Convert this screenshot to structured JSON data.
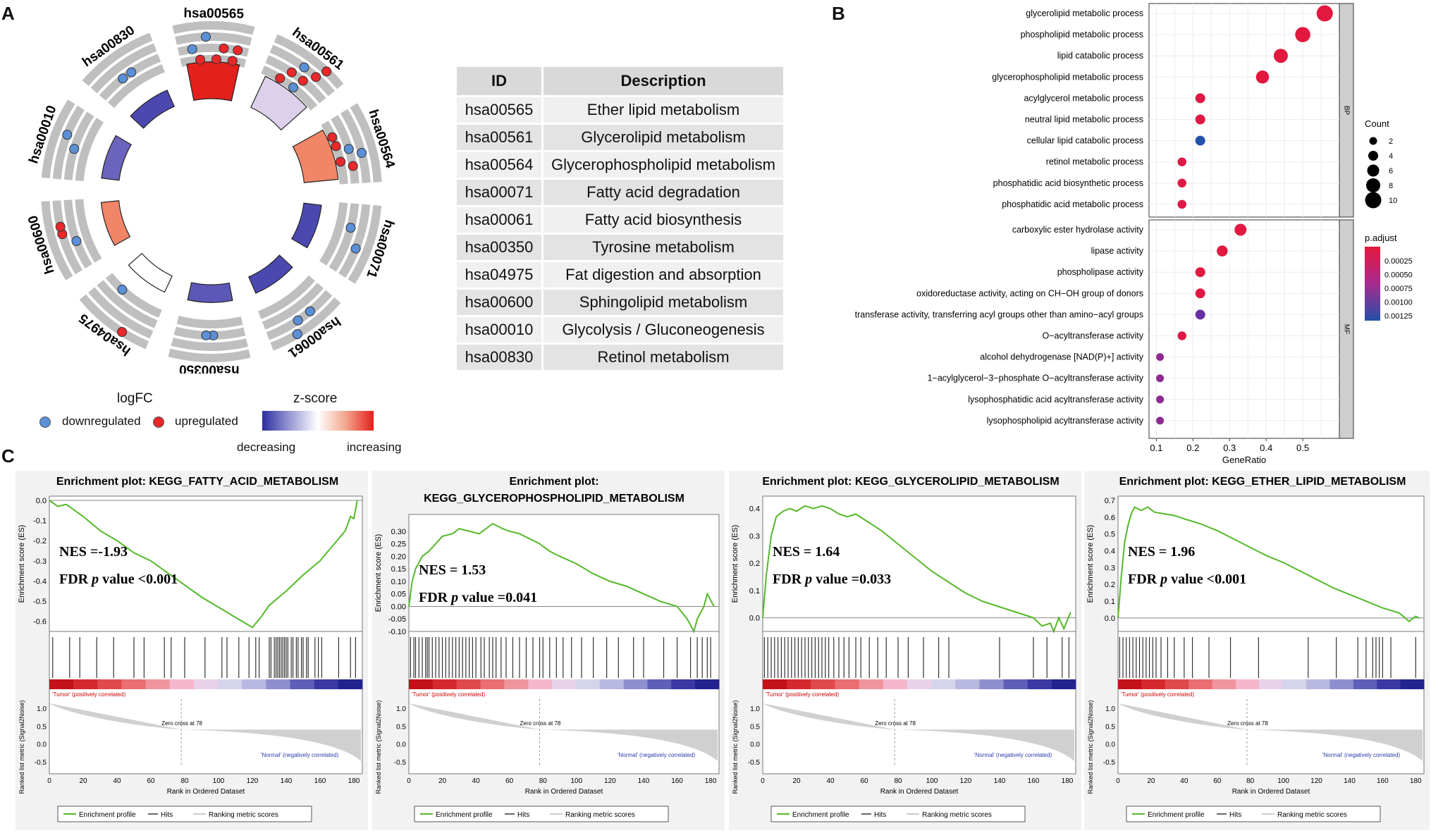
{
  "panelA": {
    "letter": "A",
    "circle_terms": [
      "hsa00565",
      "hsa00561",
      "hsa00564",
      "hsa00071",
      "hsa00061",
      "hsa00350",
      "hsa04975",
      "hsa00600",
      "hsa00010",
      "hsa00830"
    ],
    "legend": {
      "logfc_title": "logFC",
      "down_label": "downregulated",
      "up_label": "upregulated",
      "zscore_title": "z-score",
      "decreasing_label": "decreasing",
      "increasing_label": "increasing"
    },
    "colors": {
      "down": "#5b8fd6",
      "up": "#e8282a",
      "track": "#bfbfbf"
    },
    "table": {
      "headers": [
        "ID",
        "Description"
      ],
      "rows": [
        [
          "hsa00565",
          "Ether lipid metabolism"
        ],
        [
          "hsa00561",
          "Glycerolipid metabolism"
        ],
        [
          "hsa00564",
          "Glycerophospholipid metabolism"
        ],
        [
          "hsa00071",
          "Fatty acid degradation"
        ],
        [
          "hsa00061",
          "Fatty acid biosynthesis"
        ],
        [
          "hsa00350",
          "Tyrosine metabolism"
        ],
        [
          "hsa04975",
          "Fat digestion and absorption"
        ],
        [
          "hsa00600",
          "Sphingolipid metabolism"
        ],
        [
          "hsa00010",
          "Glycolysis / Gluconeogenesis"
        ],
        [
          "hsa00830",
          "Retinol metabolism"
        ]
      ]
    }
  },
  "panelB": {
    "letter": "B",
    "chart_data": {
      "type": "scatter",
      "xlabel": "GeneRatio",
      "xlim": [
        0.08,
        0.6
      ],
      "xticks": [
        "0.1",
        "0.2",
        "0.3",
        "0.4",
        "0.5"
      ],
      "facets": [
        {
          "name": "BP",
          "terms": [
            "glycerolipid metabolic process",
            "phospholipid metabolic process",
            "lipid catabolic process",
            "glycerophospholipid metabolic process",
            "acylglycerol metabolic process",
            "neutral lipid metabolic process",
            "cellular lipid catabolic process",
            "retinol metabolic process",
            "phosphatidic acid biosynthetic process",
            "phosphatidic acid metabolic process"
          ],
          "gene_ratio": [
            0.56,
            0.5,
            0.44,
            0.39,
            0.22,
            0.22,
            0.22,
            0.17,
            0.17,
            0.17
          ],
          "count": [
            10,
            9,
            8,
            7,
            4,
            4,
            4,
            3,
            3,
            3
          ],
          "p_adjust": [
            1e-05,
            1e-05,
            1e-05,
            1e-05,
            5e-05,
            5e-05,
            0.0013,
            6e-05,
            6e-05,
            6e-05
          ]
        },
        {
          "name": "MF",
          "terms": [
            "carboxylic ester hydrolase activity",
            "lipase activity",
            "phospholipase activity",
            "oxidoreductase activity, acting on CH−OH group of donors",
            "transferase activity, transferring acyl groups other than amino−acyl groups",
            "O−acyltransferase activity",
            "alcohol dehydrogenase [NAD(P)+] activity",
            "1−acylglycerol−3−phosphate O−acyltransferase activity",
            "lysophosphatidic acid acyltransferase activity",
            "lysophospholipid acyltransferase activity"
          ],
          "gene_ratio": [
            0.33,
            0.28,
            0.22,
            0.22,
            0.22,
            0.17,
            0.11,
            0.11,
            0.11,
            0.11
          ],
          "count": [
            6,
            5,
            4,
            4,
            4,
            3,
            2,
            2,
            2,
            2
          ],
          "p_adjust": [
            3e-05,
            4e-05,
            5e-05,
            5e-05,
            0.0009,
            6e-05,
            0.0007,
            0.0007,
            0.0007,
            0.0007
          ]
        }
      ],
      "count_legend": {
        "title": "Count",
        "values": [
          "2",
          "4",
          "6",
          "8",
          "10"
        ]
      },
      "padj_legend": {
        "title": "p.adjust",
        "ticks": [
          "0.00025",
          "0.00050",
          "0.00075",
          "0.00100",
          "0.00125"
        ]
      }
    }
  },
  "panelC": {
    "letter": "C",
    "plots": [
      {
        "title1": "Enrichment plot: KEGG_FATTY_ACID_METABOLISM",
        "title2": "",
        "nes": "NES =-1.93",
        "fdr_prefix": "FDR ",
        "fdr_p": "p",
        "fdr_suffix": " value <0.001",
        "ylim": [
          -0.65,
          0.0
        ],
        "yticks": [
          "0.0",
          "-0.1",
          "-0.2",
          "-0.3",
          "-0.4",
          "-0.5",
          "-0.6"
        ],
        "es_x": [
          0,
          5,
          10,
          20,
          30,
          40,
          50,
          60,
          70,
          80,
          90,
          100,
          110,
          120,
          125,
          130,
          140,
          150,
          160,
          170,
          175,
          178,
          180,
          182
        ],
        "es_y": [
          0,
          -0.03,
          -0.02,
          -0.08,
          -0.15,
          -0.2,
          -0.26,
          -0.3,
          -0.36,
          -0.42,
          -0.48,
          -0.53,
          -0.58,
          -0.63,
          -0.58,
          -0.52,
          -0.45,
          -0.37,
          -0.3,
          -0.2,
          -0.15,
          -0.08,
          -0.09,
          0.0
        ],
        "hits": [
          2,
          12,
          18,
          28,
          38,
          50,
          56,
          68,
          72,
          80,
          92,
          102,
          105,
          112,
          118,
          122,
          124,
          130,
          131,
          133,
          134,
          135,
          136,
          137,
          138,
          139,
          140,
          141,
          143,
          144,
          146,
          147,
          149,
          150,
          152,
          153,
          157,
          159,
          161,
          171,
          178,
          181
        ]
      },
      {
        "title1": "Enrichment plot:",
        "title2": "KEGG_GLYCEROPHOSPHOLIPID_METABOLISM",
        "nes": "NES = 1.53",
        "fdr_prefix": "FDR ",
        "fdr_p": "p",
        "fdr_suffix": " value =0.041",
        "ylim": [
          -0.1,
          0.35
        ],
        "yticks": [
          "0.30",
          "0.25",
          "0.20",
          "0.15",
          "0.10",
          "0.05",
          "0.00",
          "-0.05",
          "-0.10"
        ],
        "es_x": [
          0,
          2,
          4,
          8,
          12,
          16,
          20,
          26,
          30,
          36,
          42,
          46,
          50,
          56,
          60,
          66,
          72,
          78,
          84,
          90,
          100,
          110,
          120,
          130,
          140,
          150,
          160,
          166,
          170,
          172,
          176,
          178,
          182
        ],
        "es_y": [
          0,
          0.1,
          0.15,
          0.2,
          0.22,
          0.25,
          0.28,
          0.29,
          0.31,
          0.3,
          0.29,
          0.31,
          0.33,
          0.31,
          0.3,
          0.29,
          0.27,
          0.25,
          0.22,
          0.2,
          0.17,
          0.13,
          0.1,
          0.08,
          0.05,
          0.02,
          0.0,
          -0.05,
          -0.1,
          -0.05,
          0.0,
          0.05,
          0.0
        ],
        "hits": [
          1,
          3,
          4,
          6,
          8,
          10,
          11,
          12,
          14,
          16,
          18,
          20,
          22,
          24,
          26,
          28,
          30,
          32,
          34,
          36,
          38,
          40,
          43,
          45,
          48,
          50,
          52,
          55,
          58,
          62,
          66,
          70,
          74,
          78,
          80,
          84,
          88,
          92,
          97,
          103,
          110,
          118,
          125,
          134,
          140,
          152,
          160,
          168,
          172,
          175,
          178,
          180
        ]
      },
      {
        "title1": "Enrichment plot: KEGG_GLYCEROLIPID_METABOLISM",
        "title2": "",
        "nes": "NES = 1.64",
        "fdr_prefix": "FDR ",
        "fdr_p": "p",
        "fdr_suffix": " value =0.033",
        "ylim": [
          -0.05,
          0.43
        ],
        "yticks": [
          "0.4",
          "0.3",
          "0.2",
          "0.1",
          "0.0"
        ],
        "es_x": [
          0,
          2,
          5,
          8,
          12,
          16,
          20,
          25,
          30,
          35,
          40,
          45,
          50,
          55,
          60,
          70,
          80,
          90,
          100,
          110,
          120,
          130,
          140,
          150,
          160,
          165,
          170,
          172,
          175,
          178,
          182
        ],
        "es_y": [
          0,
          0.15,
          0.3,
          0.37,
          0.39,
          0.4,
          0.39,
          0.41,
          0.4,
          0.41,
          0.4,
          0.38,
          0.37,
          0.38,
          0.36,
          0.32,
          0.27,
          0.22,
          0.17,
          0.13,
          0.09,
          0.06,
          0.04,
          0.02,
          0.0,
          -0.03,
          -0.02,
          -0.05,
          0.0,
          -0.04,
          0.02
        ],
        "hits": [
          1,
          3,
          5,
          7,
          9,
          11,
          13,
          15,
          17,
          19,
          21,
          23,
          25,
          27,
          29,
          31,
          33,
          35,
          37,
          39,
          42,
          45,
          48,
          51,
          55,
          58,
          63,
          68,
          73,
          80,
          86,
          95,
          104,
          110,
          140,
          160,
          168,
          177,
          181
        ]
      },
      {
        "title1": "Enrichment plot: KEGG_ETHER_LIPID_METABOLISM",
        "title2": "",
        "nes": "NES = 1.96",
        "fdr_prefix": "FDR ",
        "fdr_p": "p",
        "fdr_suffix": " value <0.001",
        "ylim": [
          -0.08,
          0.7
        ],
        "yticks": [
          "0.7",
          "0.6",
          "0.5",
          "0.4",
          "0.3",
          "0.2",
          "0.1",
          "0.0"
        ],
        "es_x": [
          0,
          2,
          4,
          6,
          8,
          10,
          14,
          18,
          22,
          28,
          34,
          40,
          50,
          60,
          70,
          80,
          90,
          100,
          110,
          120,
          130,
          140,
          150,
          160,
          170,
          176,
          180,
          182
        ],
        "es_y": [
          0,
          0.25,
          0.45,
          0.55,
          0.62,
          0.66,
          0.64,
          0.66,
          0.63,
          0.62,
          0.61,
          0.59,
          0.56,
          0.52,
          0.47,
          0.42,
          0.37,
          0.33,
          0.28,
          0.23,
          0.18,
          0.14,
          0.1,
          0.06,
          0.03,
          -0.02,
          0.01,
          0.0
        ],
        "hits": [
          1,
          3,
          5,
          7,
          9,
          11,
          13,
          15,
          17,
          19,
          21,
          23,
          26,
          30,
          34,
          40,
          45,
          55,
          68,
          85,
          115,
          132,
          145,
          150,
          154,
          156,
          158,
          160,
          165,
          180
        ]
      }
    ],
    "xlabel": "Rank in Ordered Dataset",
    "xticks": [
      "0",
      "20",
      "40",
      "60",
      "80",
      "100",
      "120",
      "140",
      "160",
      "180"
    ],
    "ylabel_es": "Enrichment score (ES)",
    "ylabel_rank": "Ranked list metric (Signal2Noise)",
    "rank_yticks": [
      "1.0",
      "0.5",
      "0.0",
      "-0.5"
    ],
    "tumor_label": "'Tumor' (positively correlated)",
    "normal_label": "'Normal' (negatively correlated)",
    "zero_cross": "Zero cross at 78",
    "zero_cross_rank": 78,
    "legend_profile": "Enrichment profile",
    "legend_hits": "Hits",
    "legend_metric": "Ranking metric scores",
    "profile_color": "#55b82a"
  }
}
